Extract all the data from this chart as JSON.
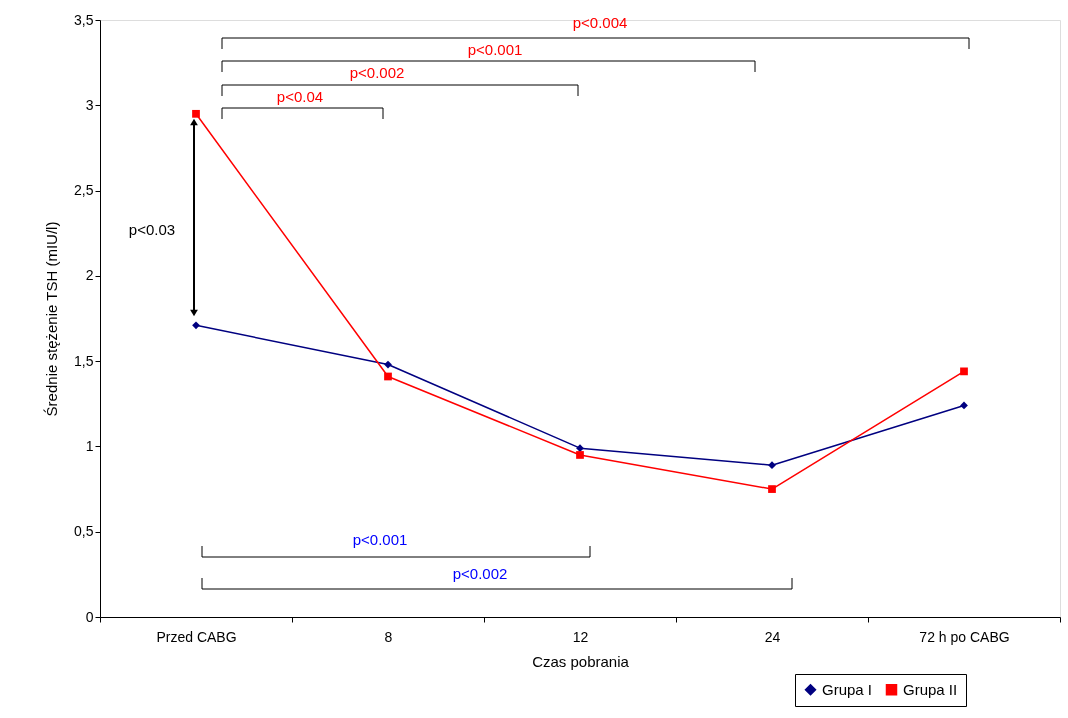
{
  "chart_data": {
    "type": "line",
    "xlabel": "Czas pobrania",
    "ylabel": "Średnie stężenie TSH (mIU/l)",
    "categories": [
      "Przed CABG",
      "8",
      "12",
      "24",
      "72 h po CABG"
    ],
    "series": [
      {
        "name": "Grupa I",
        "color": "#000080",
        "marker": "diamond",
        "values": [
          1.71,
          1.48,
          0.99,
          0.89,
          1.24
        ]
      },
      {
        "name": "Grupa II",
        "color": "#ff0000",
        "marker": "square",
        "values": [
          2.95,
          1.41,
          0.95,
          0.75,
          1.44
        ]
      }
    ],
    "ylim": [
      0,
      3.5
    ],
    "yticks": [
      0,
      {
        "value": 0.5,
        "label": "0,5"
      },
      1,
      {
        "value": 1.5,
        "label": "1,5"
      },
      2,
      {
        "value": 2.5,
        "label": "2,5"
      },
      3,
      {
        "value": 3.5,
        "label": "3,5"
      }
    ],
    "grid": false,
    "legend": "bottom right",
    "annotations": [
      "p<0.04",
      "p<0.002",
      "p<0.001",
      "p<0.004",
      "p<0.001",
      "p<0.002",
      "p<0.03"
    ]
  }
}
